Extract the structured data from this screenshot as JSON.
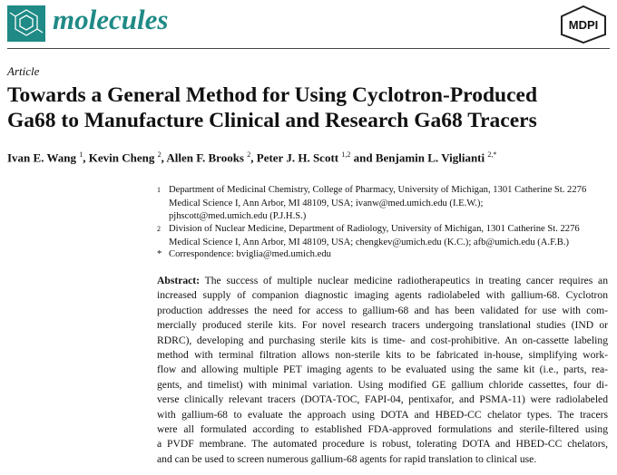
{
  "header": {
    "journal": "molecules",
    "publisher": "MDPI"
  },
  "article_type": "Article",
  "title_lines": [
    "Towards a General Method for Using Cyclotron-Produced",
    "Ga68 to Manufacture Clinical and Research Ga68 Tracers"
  ],
  "authors": [
    {
      "name": "Ivan E. Wang",
      "sup": "1"
    },
    {
      "name": "Kevin Cheng",
      "sup": "2"
    },
    {
      "name": "Allen F. Brooks",
      "sup": "2"
    },
    {
      "name": "Peter J. H. Scott",
      "sup": "1,2"
    },
    {
      "name": "Benjamin L. Viglianti",
      "sup": "2,*"
    }
  ],
  "author_separators": [
    ",",
    ",",
    ",",
    "and"
  ],
  "affiliations": [
    {
      "number": "1",
      "lines": [
        "Department of Medicinal Chemistry, College of Pharmacy, University of Michigan, 1301 Catherine St. 2276",
        "Medical Science I, Ann Arbor, MI 48109, USA; ivanw@med.umich.edu (I.E.W.);",
        "pjhscott@med.umich.edu (P.J.H.S.)"
      ]
    },
    {
      "number": "2",
      "lines": [
        "Division of Nuclear Medicine, Department of Radiology, University of Michigan, 1301 Catherine St. 2276",
        "Medical Science I, Ann Arbor, MI 48109, USA; chengkev@umich.edu (K.C.); afb@umich.edu (A.F.B.)"
      ]
    },
    {
      "number": "*",
      "lines": [
        "Correspondence: bviglia@med.umich.edu"
      ]
    }
  ],
  "abstract": {
    "label": "Abstract:",
    "lines": [
      "The success of multiple nuclear medicine radiotherapeutics in treating cancer requires an",
      "increased supply of companion diagnostic imaging agents radiolabeled with gallium-68. Cyclotron",
      "production addresses the need for access to gallium-68 and has been validated for use with com-",
      "mercially produced sterile kits. For novel research tracers undergoing translational studies (IND or",
      "RDRC), developing and purchasing sterile kits is time- and cost-prohibitive. An on-cassette labeling",
      "method with terminal filtration allows non-sterile kits to be fabricated in-house, simplifying work-",
      "flow and allowing multiple PET imaging agents to be evaluated using the same kit (i.e., parts, rea-",
      "gents, and timelist) with minimal variation. Using modified GE gallium chloride cassettes, four di-",
      "verse clinically relevant tracers (DOTA-TOC, FAPI-04, pentixafor, and PSMA-11) were radiolabeled",
      "with gallium-68 to evaluate the approach using DOTA and HBED-CC chelator types. The tracers",
      "were all formulated according to established FDA-approved formulations and sterile-filtered using",
      "a PVDF membrane. The automated procedure is robust, tolerating DOTA and HBED-CC chelators,",
      "and can be used to screen numerous gallium-68 agents for rapid translation to clinical use."
    ]
  }
}
